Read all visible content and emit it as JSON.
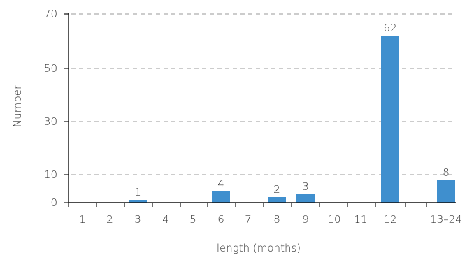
{
  "chart_data": {
    "type": "bar",
    "categories": [
      "1",
      "2",
      "3",
      "4",
      "5",
      "6",
      "7",
      "8",
      "9",
      "10",
      "11",
      "12",
      "13–24"
    ],
    "values": [
      0,
      0,
      1,
      0,
      0,
      4,
      0,
      2,
      3,
      0,
      0,
      62,
      8
    ],
    "data_labels": [
      "",
      "",
      "1",
      "",
      "",
      "4",
      "",
      "2",
      "3",
      "",
      "",
      "62",
      "8"
    ],
    "title": "",
    "xlabel": "length (months)",
    "ylabel": "Number",
    "y_ticks": [
      0,
      10,
      30,
      50,
      70
    ],
    "ylim": [
      0,
      70
    ],
    "y_scale": "custom-piecewise",
    "grid": true,
    "grid_style": "dashed",
    "bar_color": "#3f8fce"
  }
}
